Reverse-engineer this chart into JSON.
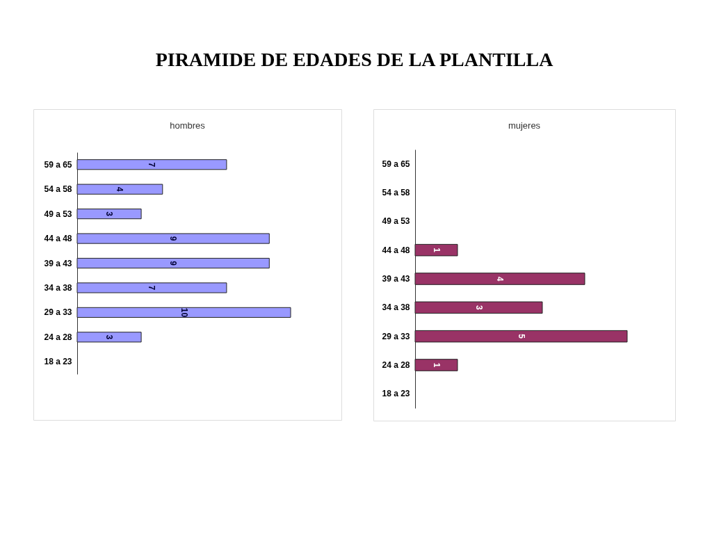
{
  "chart_data": [
    {
      "type": "other",
      "title": "PIRAMIDE DE EDADES DE LA PLANTILLA"
    },
    {
      "type": "bar",
      "orientation": "horizontal",
      "title": "hombres",
      "categories": [
        "59 a 65",
        "54 a 58",
        "49 a 53",
        "44 a 48",
        "39 a 43",
        "34 a 38",
        "29 a 33",
        "24 a 28",
        "18 a 23"
      ],
      "values": [
        7,
        4,
        3,
        9,
        9,
        7,
        10,
        3,
        null
      ],
      "color": "#9999ff",
      "data_labels": true
    },
    {
      "type": "bar",
      "orientation": "horizontal",
      "title": "mujeres",
      "categories": [
        "59 a 65",
        "54 a 58",
        "49 a 53",
        "44 a 48",
        "39 a 43",
        "34 a 38",
        "29 a 33",
        "24 a 28",
        "18 a 23"
      ],
      "values": [
        null,
        null,
        null,
        1,
        4,
        3,
        5,
        1,
        null
      ],
      "color": "#993366",
      "data_labels": true
    }
  ]
}
